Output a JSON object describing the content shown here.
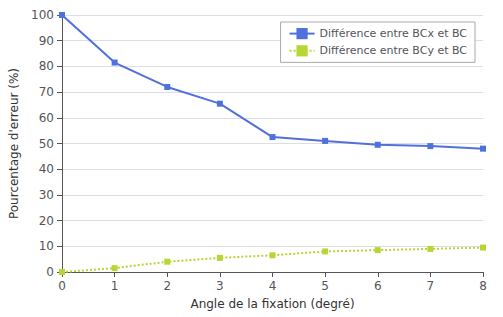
{
  "chart_data": {
    "type": "line",
    "x": [
      0,
      1,
      2,
      3,
      4,
      5,
      6,
      7,
      8
    ],
    "series": [
      {
        "name": "Différence entre BCx et BC",
        "values": [
          100,
          81.5,
          72,
          65.5,
          52.5,
          51,
          49.5,
          49,
          48
        ],
        "marker": "square",
        "line_style": "solid"
      },
      {
        "name": "Différence entre BCy et BC",
        "values": [
          0,
          1.5,
          4.0,
          5.5,
          6.5,
          8.0,
          8.5,
          9.0,
          9.5
        ],
        "marker": "square",
        "line_style": "dotted"
      }
    ],
    "xlabel": "Angle de la fixation (degré)",
    "ylabel": "Pourcentage d'erreur (%)",
    "xlim": [
      0,
      8
    ],
    "ylim": [
      0,
      100
    ],
    "xticks": [
      0,
      1,
      2,
      3,
      4,
      5,
      6,
      7,
      8
    ],
    "yticks": [
      0,
      10,
      20,
      30,
      40,
      50,
      60,
      70,
      80,
      90,
      100
    ],
    "grid": true,
    "legend": "upper right"
  }
}
